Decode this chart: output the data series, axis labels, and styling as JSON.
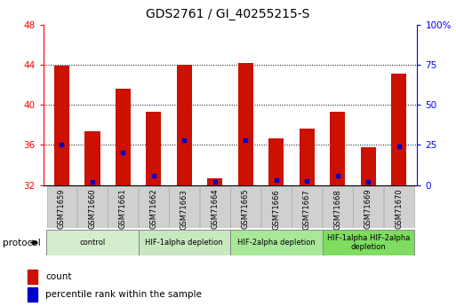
{
  "title": "GDS2761 / GI_40255215-S",
  "samples": [
    "GSM71659",
    "GSM71660",
    "GSM71661",
    "GSM71662",
    "GSM71663",
    "GSM71664",
    "GSM71665",
    "GSM71666",
    "GSM71667",
    "GSM71668",
    "GSM71669",
    "GSM71670"
  ],
  "counts": [
    43.9,
    37.4,
    41.6,
    39.3,
    44.0,
    32.7,
    44.2,
    36.7,
    37.6,
    39.3,
    35.8,
    43.1
  ],
  "percentile_ranks_pct": [
    25.0,
    2.0,
    20.0,
    6.0,
    28.0,
    2.0,
    28.0,
    3.0,
    2.5,
    6.0,
    2.0,
    24.0
  ],
  "ylim_left": [
    32,
    48
  ],
  "ylim_right": [
    0,
    100
  ],
  "yticks_left": [
    32,
    36,
    40,
    44,
    48
  ],
  "yticks_right": [
    0,
    25,
    50,
    75,
    100
  ],
  "ytick_right_labels": [
    "0",
    "25",
    "50",
    "75",
    "100%"
  ],
  "bar_color": "#cc1100",
  "dot_color": "#0000cc",
  "groups": [
    {
      "label": "control",
      "start": 0,
      "end": 3,
      "color": "#d4edcc"
    },
    {
      "label": "HIF-1alpha depletion",
      "start": 3,
      "end": 6,
      "color": "#c8e8c0"
    },
    {
      "label": "HIF-2alpha depletion",
      "start": 6,
      "end": 9,
      "color": "#a8e898"
    },
    {
      "label": "HIF-1alpha HIF-2alpha\ndepletion",
      "start": 9,
      "end": 12,
      "color": "#7edd60"
    }
  ],
  "protocol_label": "protocol",
  "legend_count_label": "count",
  "legend_pct_label": "percentile rank within the sample",
  "bar_width": 0.5,
  "sample_box_color": "#d0d0d0",
  "spine_color": "#000000"
}
